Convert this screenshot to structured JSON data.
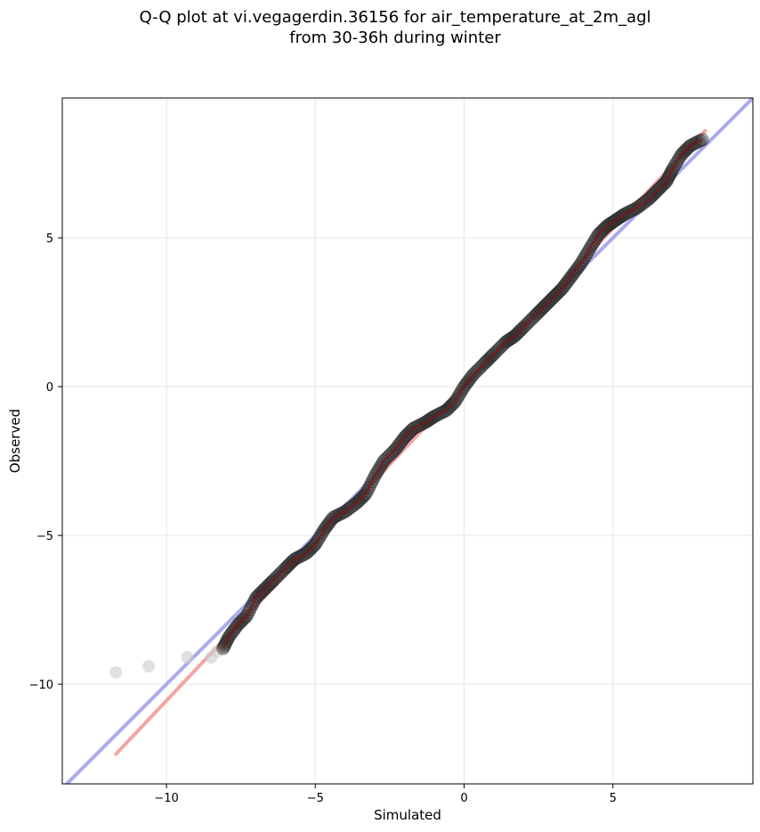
{
  "chart_data": {
    "type": "scatter",
    "title_line1": "Q-Q plot at vi.vegagerdin.36156 for air_temperature_at_2m_agl",
    "title_line2": "from 30-36h during winter",
    "xlabel": "Simulated",
    "ylabel": "Observed",
    "xlim": [
      -13.5,
      9.7
    ],
    "ylim": [
      -13.35,
      9.7
    ],
    "xticks": [
      -10,
      -5,
      0,
      5
    ],
    "yticks": [
      -10,
      -5,
      0,
      5
    ],
    "xtick_labels": [
      "−10",
      "−5",
      "0",
      "5"
    ],
    "ytick_labels": [
      "−10",
      "−5",
      "0",
      "5"
    ],
    "grid": true,
    "identity_line_color": "#aaaaee",
    "fit_line_color": "#f4a4a4",
    "fit_line": {
      "x": [
        -11.7,
        8.1
      ],
      "y": [
        -12.35,
        8.6
      ]
    },
    "curve_color": "#8b1010",
    "marker_color": "#333333",
    "outlier_marker_color": "#cccccc",
    "outliers": [
      {
        "x": -11.7,
        "y": -9.6
      },
      {
        "x": -10.6,
        "y": -9.4
      },
      {
        "x": -9.3,
        "y": -9.1
      },
      {
        "x": -8.5,
        "y": -9.1
      },
      {
        "x": -8.3,
        "y": -8.9
      }
    ],
    "quantile_curve": [
      [
        -8.1,
        -8.8
      ],
      [
        -7.9,
        -8.4
      ],
      [
        -7.6,
        -8.0
      ],
      [
        -7.3,
        -7.7
      ],
      [
        -7.0,
        -7.1
      ],
      [
        -6.7,
        -6.8
      ],
      [
        -6.4,
        -6.5
      ],
      [
        -6.0,
        -6.1
      ],
      [
        -5.7,
        -5.8
      ],
      [
        -5.3,
        -5.6
      ],
      [
        -5.0,
        -5.3
      ],
      [
        -4.7,
        -4.8
      ],
      [
        -4.4,
        -4.4
      ],
      [
        -4.0,
        -4.2
      ],
      [
        -3.6,
        -3.9
      ],
      [
        -3.3,
        -3.6
      ],
      [
        -3.0,
        -3.0
      ],
      [
        -2.7,
        -2.5
      ],
      [
        -2.3,
        -2.1
      ],
      [
        -2.0,
        -1.7
      ],
      [
        -1.7,
        -1.4
      ],
      [
        -1.3,
        -1.2
      ],
      [
        -1.0,
        -1.0
      ],
      [
        -0.6,
        -0.8
      ],
      [
        -0.3,
        -0.5
      ],
      [
        0.0,
        0.0
      ],
      [
        0.3,
        0.4
      ],
      [
        0.7,
        0.8
      ],
      [
        1.0,
        1.1
      ],
      [
        1.4,
        1.5
      ],
      [
        1.7,
        1.7
      ],
      [
        2.0,
        2.0
      ],
      [
        2.4,
        2.4
      ],
      [
        2.7,
        2.7
      ],
      [
        3.0,
        3.0
      ],
      [
        3.3,
        3.3
      ],
      [
        3.6,
        3.7
      ],
      [
        3.9,
        4.1
      ],
      [
        4.2,
        4.6
      ],
      [
        4.5,
        5.1
      ],
      [
        4.8,
        5.4
      ],
      [
        5.1,
        5.6
      ],
      [
        5.4,
        5.8
      ],
      [
        5.8,
        6.0
      ],
      [
        6.2,
        6.3
      ],
      [
        6.5,
        6.6
      ],
      [
        6.8,
        6.9
      ],
      [
        7.0,
        7.3
      ],
      [
        7.3,
        7.8
      ],
      [
        7.6,
        8.1
      ],
      [
        8.0,
        8.3
      ]
    ]
  }
}
